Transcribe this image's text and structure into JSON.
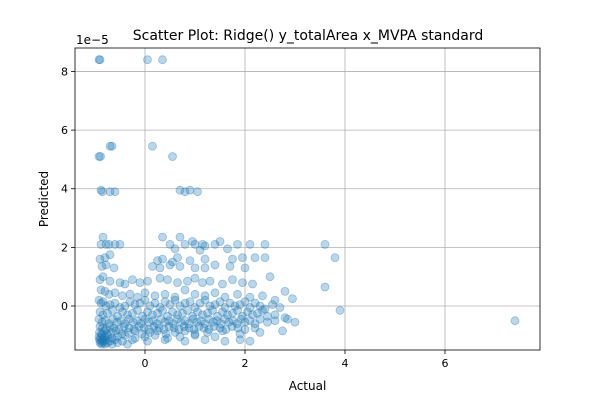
{
  "chart_data": {
    "type": "scatter",
    "title": "Scatter Plot: Ridge() y_totalArea x_MVPA standard",
    "xlabel": "Actual",
    "ylabel": "Predicted",
    "y_offset_label": "1e−5",
    "xlim": [
      -1.4,
      7.9
    ],
    "ylim": [
      -1.5,
      8.8
    ],
    "xticks": [
      0,
      2,
      4,
      6
    ],
    "xtick_labels": [
      "0",
      "2",
      "4",
      "6"
    ],
    "yticks": [
      0,
      2,
      4,
      6,
      8
    ],
    "ytick_labels": [
      "0",
      "2",
      "4",
      "6",
      "8"
    ],
    "grid": true,
    "marker_color": "#1f77b4",
    "marker_alpha": 0.3,
    "series": [
      {
        "x": [
          -0.92,
          -0.9,
          0.05,
          0.35,
          -0.92,
          -0.89,
          -0.7,
          -0.66,
          0.15,
          0.55,
          -0.88,
          -0.85,
          -0.7,
          -0.6,
          0.7,
          0.8,
          0.9,
          1.05,
          0.35,
          0.7,
          0.95,
          1.15,
          1.5,
          -0.88,
          -0.84,
          -0.78,
          -0.72,
          -0.6,
          -0.5,
          0.5,
          0.6,
          0.8,
          1.0,
          1.1,
          1.2,
          1.4,
          1.65,
          1.85,
          2.1,
          2.4,
          3.6,
          -0.9,
          -0.8,
          -0.7,
          0.25,
          0.35,
          0.55,
          0.65,
          0.9,
          1.2,
          1.75,
          1.95,
          2.2,
          2.4,
          3.8,
          -0.86,
          -0.78,
          -0.62,
          0.15,
          0.3,
          0.5,
          0.7,
          1.0,
          1.2,
          1.4,
          1.7,
          2.0,
          2.5,
          -0.9,
          -0.84,
          -0.7,
          -0.5,
          -0.4,
          -0.25,
          -0.1,
          0.05,
          0.3,
          0.45,
          0.65,
          0.85,
          1.0,
          1.15,
          1.3,
          1.55,
          1.75,
          1.95,
          2.15,
          2.8,
          3.6,
          -0.88,
          -0.8,
          -0.72,
          -0.6,
          -0.45,
          -0.3,
          -0.15,
          0.0,
          0.2,
          0.4,
          0.6,
          0.8,
          1.0,
          1.2,
          1.4,
          1.6,
          1.85,
          2.1,
          2.35,
          2.6,
          2.95,
          3.9,
          -0.92,
          -0.88,
          -0.84,
          -0.78,
          -0.7,
          -0.6,
          -0.5,
          -0.4,
          -0.3,
          -0.2,
          -0.1,
          0.0,
          0.1,
          0.2,
          0.3,
          0.4,
          0.5,
          0.6,
          0.7,
          0.8,
          0.9,
          1.0,
          1.1,
          1.2,
          1.3,
          1.4,
          1.5,
          1.6,
          1.7,
          1.8,
          1.9,
          2.0,
          2.1,
          2.2,
          2.3,
          2.4,
          2.55,
          2.7,
          -0.9,
          -0.84,
          -0.75,
          -0.65,
          -0.55,
          -0.45,
          -0.35,
          -0.25,
          -0.15,
          -0.05,
          0.05,
          0.15,
          0.25,
          0.35,
          0.45,
          0.55,
          0.65,
          0.75,
          0.85,
          0.95,
          1.05,
          1.15,
          1.25,
          1.35,
          1.45,
          1.55,
          1.65,
          1.75,
          1.85,
          1.95,
          2.05,
          2.15,
          2.25,
          2.35,
          2.45,
          2.6,
          2.8,
          3.0,
          -0.92,
          -0.86,
          -0.8,
          -0.72,
          -0.64,
          -0.56,
          -0.48,
          -0.4,
          -0.32,
          -0.24,
          -0.16,
          -0.08,
          0.0,
          0.08,
          0.16,
          0.24,
          0.32,
          0.4,
          0.48,
          0.56,
          0.64,
          0.72,
          0.8,
          0.88,
          0.96,
          1.04,
          1.12,
          1.2,
          1.28,
          1.36,
          1.44,
          1.52,
          1.6,
          1.68,
          1.76,
          1.84,
          1.92,
          2.0,
          2.1,
          2.2,
          2.3,
          2.45,
          2.6,
          2.85,
          -0.9,
          -0.85,
          -0.78,
          -0.7,
          -0.62,
          -0.52,
          -0.42,
          -0.32,
          -0.22,
          -0.12,
          -0.02,
          0.08,
          0.18,
          0.28,
          0.38,
          0.48,
          0.58,
          0.68,
          0.78,
          0.88,
          0.98,
          1.08,
          1.18,
          1.28,
          1.38,
          1.5,
          1.62,
          1.74,
          1.86,
          2.0,
          2.2,
          -0.91,
          -0.87,
          -0.82,
          -0.76,
          -0.68,
          -0.58,
          -0.46,
          -0.34,
          -0.2,
          -0.06,
          0.1,
          0.25,
          0.42,
          0.6,
          0.8,
          1.0,
          1.25,
          1.55,
          1.9,
          2.3,
          2.75,
          -0.92,
          -0.89,
          -0.86,
          -0.83,
          -0.8,
          -0.74,
          -0.66,
          -0.55,
          -0.4,
          -0.2,
          0.0,
          0.2,
          0.45,
          0.7,
          1.0,
          1.4,
          -0.91,
          -0.88,
          -0.85,
          -0.82,
          -0.78,
          -0.7,
          -0.6,
          -0.45,
          -0.25,
          0.05,
          0.4,
          0.8,
          1.2,
          1.6,
          1.9,
          2.1,
          -0.9,
          -0.87,
          -0.84,
          -0.8,
          -0.75,
          -0.66,
          -0.55,
          -0.35,
          7.4
        ],
        "y": [
          8.4,
          8.4,
          8.4,
          8.4,
          5.1,
          5.1,
          5.45,
          5.45,
          5.45,
          5.1,
          3.95,
          3.9,
          3.9,
          3.9,
          3.95,
          3.9,
          3.95,
          3.9,
          2.35,
          2.35,
          2.2,
          2.1,
          2.2,
          2.1,
          2.35,
          2.1,
          2.1,
          2.1,
          2.1,
          2.1,
          1.95,
          2.1,
          2.1,
          1.9,
          2.05,
          2.1,
          1.95,
          2.1,
          2.1,
          2.1,
          2.1,
          1.6,
          1.65,
          1.75,
          1.55,
          1.6,
          1.5,
          1.65,
          1.55,
          1.6,
          1.6,
          1.65,
          1.65,
          1.65,
          1.65,
          1.35,
          1.4,
          1.3,
          1.35,
          1.3,
          1.4,
          1.35,
          1.3,
          1.3,
          1.4,
          1.35,
          1.3,
          1.0,
          0.9,
          1.0,
          0.85,
          0.8,
          0.75,
          0.9,
          0.8,
          0.85,
          0.95,
          0.9,
          0.8,
          0.85,
          0.95,
          0.8,
          0.85,
          0.75,
          0.9,
          0.8,
          0.75,
          0.5,
          0.65,
          0.55,
          0.5,
          0.4,
          0.45,
          0.35,
          0.4,
          0.3,
          0.45,
          0.35,
          0.4,
          0.3,
          0.55,
          0.4,
          0.35,
          0.45,
          0.3,
          0.4,
          0.3,
          0.35,
          0.2,
          0.25,
          -0.15,
          0.2,
          0.1,
          0.15,
          0.0,
          0.05,
          0.1,
          -0.05,
          0.0,
          0.15,
          0.05,
          0.1,
          0.2,
          0.0,
          0.1,
          -0.05,
          0.15,
          0.05,
          0.2,
          0.0,
          0.1,
          0.15,
          -0.05,
          0.1,
          0.2,
          0.0,
          0.05,
          0.15,
          -0.05,
          0.1,
          0.0,
          0.05,
          0.15,
          -0.05,
          0.1,
          0.0,
          -0.1,
          0.05,
          -0.05,
          -0.2,
          -0.3,
          -0.25,
          -0.15,
          -0.35,
          -0.2,
          -0.3,
          -0.25,
          -0.15,
          -0.35,
          -0.2,
          -0.3,
          -0.25,
          -0.15,
          -0.35,
          -0.2,
          -0.3,
          -0.25,
          -0.15,
          -0.35,
          -0.2,
          -0.3,
          -0.25,
          -0.15,
          -0.35,
          -0.2,
          -0.3,
          -0.25,
          -0.15,
          -0.35,
          -0.2,
          -0.3,
          -0.25,
          -0.15,
          -0.35,
          -0.3,
          -0.4,
          -0.55,
          -0.45,
          -0.55,
          -0.5,
          -0.6,
          -0.45,
          -0.55,
          -0.5,
          -0.6,
          -0.45,
          -0.55,
          -0.5,
          -0.6,
          -0.45,
          -0.55,
          -0.5,
          -0.6,
          -0.45,
          -0.55,
          -0.5,
          -0.6,
          -0.45,
          -0.55,
          -0.5,
          -0.6,
          -0.45,
          -0.55,
          -0.5,
          -0.6,
          -0.45,
          -0.55,
          -0.5,
          -0.6,
          -0.45,
          -0.55,
          -0.5,
          -0.6,
          -0.45,
          -0.55,
          -0.5,
          -0.6,
          -0.45,
          -0.55,
          -0.5,
          -0.45,
          -0.7,
          -0.75,
          -0.8,
          -0.7,
          -0.75,
          -0.8,
          -0.7,
          -0.75,
          -0.8,
          -0.7,
          -0.75,
          -0.8,
          -0.7,
          -0.75,
          -0.8,
          -0.7,
          -0.75,
          -0.8,
          -0.7,
          -0.75,
          -0.8,
          -0.7,
          -0.75,
          -0.8,
          -0.7,
          -0.75,
          -0.8,
          -0.7,
          -0.75,
          -0.8,
          -0.75,
          -0.9,
          -0.95,
          -0.85,
          -0.95,
          -0.9,
          -0.85,
          -0.95,
          -0.9,
          -0.85,
          -0.95,
          -0.9,
          -0.85,
          -0.95,
          -0.9,
          -0.85,
          -0.95,
          -0.9,
          -0.85,
          -0.95,
          -0.9,
          -0.85,
          -1.05,
          -1.1,
          -1.0,
          -1.1,
          -1.05,
          -1.0,
          -1.1,
          -1.05,
          -1.0,
          -1.1,
          -1.05,
          -1.0,
          -1.1,
          -1.05,
          -1.0,
          -1.05,
          -1.15,
          -1.2,
          -1.15,
          -1.2,
          -1.15,
          -1.2,
          -1.15,
          -1.2,
          -1.15,
          -1.2,
          -1.15,
          -1.2,
          -1.15,
          -1.2,
          -1.15,
          -1.2,
          -1.25,
          -1.3,
          -1.25,
          -1.3,
          -1.25,
          -1.3,
          -1.25,
          -1.3,
          -0.5
        ]
      }
    ]
  }
}
